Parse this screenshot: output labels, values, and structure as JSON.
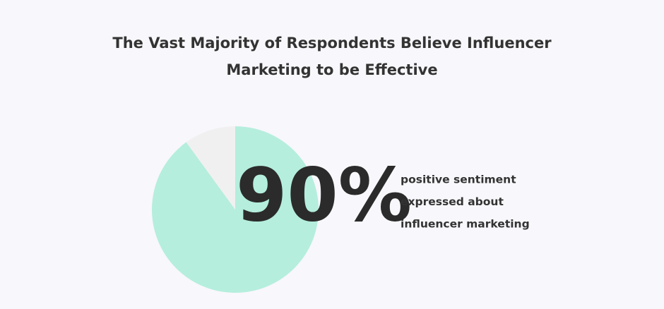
{
  "chart_data": {
    "type": "pie",
    "title": "The Vast Majority of Respondents Believe Influencer Marketing to be Effective",
    "values": [
      90,
      10
    ],
    "value_labels": [
      "90%",
      null
    ],
    "colors": [
      "#b5eedd",
      "#f1f0f0"
    ],
    "annotation_lines": [
      "positive sentiment",
      "expressed about",
      "influencer marketing"
    ]
  }
}
